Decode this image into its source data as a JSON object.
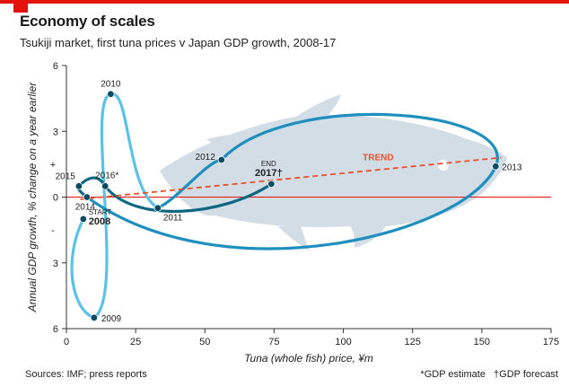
{
  "header": {
    "title": "Economy of scales",
    "subtitle": "Tsukiji market, first tuna prices v Japan GDP growth, 2008-17"
  },
  "footer": {
    "sources": "Sources: IMF; press reports",
    "notes": [
      "*GDP estimate",
      "†GDP forecast"
    ]
  },
  "colors": {
    "accent_red": "#e3120b",
    "tuna_fill": "#d3dde6",
    "line_light": "#5bc2e7",
    "line_mid": "#1f8fbf",
    "line_dark": "#0e6780",
    "trend": "#e8502a",
    "point": "#0b4a63"
  },
  "chart_data": {
    "type": "line",
    "title": "Economy of scales",
    "subtitle": "Tsukiji market, first tuna prices v Japan GDP growth, 2008-17",
    "xlabel": "Tuna (whole fish) price, ¥m",
    "ylabel": "Annual GDP growth, % change on a year earlier",
    "xlim": [
      0,
      175
    ],
    "ylim": [
      -6,
      6
    ],
    "x_ticks": [
      0,
      25,
      50,
      75,
      100,
      125,
      150,
      175
    ],
    "x_tick_labels": [
      "0",
      "25",
      "50",
      "75",
      "100",
      "125",
      "150",
      "175"
    ],
    "y_ticks": [
      6,
      3,
      0,
      -3,
      -6
    ],
    "y_tick_labels": [
      "6",
      "3",
      "0",
      "3",
      "6"
    ],
    "y_sign_labels": [
      "+",
      "-"
    ],
    "grid": false,
    "points": [
      {
        "year": "2008",
        "label": "2008",
        "prefix": "START",
        "x": 6.1,
        "y": -1.0
      },
      {
        "year": "2009",
        "label": "2009",
        "x": 10,
        "y": -5.5
      },
      {
        "year": "2010",
        "label": "2010",
        "x": 16,
        "y": 4.7
      },
      {
        "year": "2011",
        "label": "2011",
        "x": 33,
        "y": -0.5
      },
      {
        "year": "2012",
        "label": "2012",
        "x": 56,
        "y": 1.7
      },
      {
        "year": "2013",
        "label": "2013",
        "x": 155,
        "y": 1.4
      },
      {
        "year": "2014",
        "label": "2014",
        "x": 7.4,
        "y": 0.0
      },
      {
        "year": "2015",
        "label": "2015",
        "x": 4.5,
        "y": 0.5
      },
      {
        "year": "2016",
        "label": "2016*",
        "x": 14,
        "y": 0.5
      },
      {
        "year": "2017",
        "label": "2017†",
        "prefix": "END",
        "x": 74,
        "y": 0.6
      }
    ],
    "trend_label": "TREND",
    "trend": {
      "x": [
        5,
        157
      ],
      "y": [
        -0.1,
        1.8
      ]
    }
  }
}
